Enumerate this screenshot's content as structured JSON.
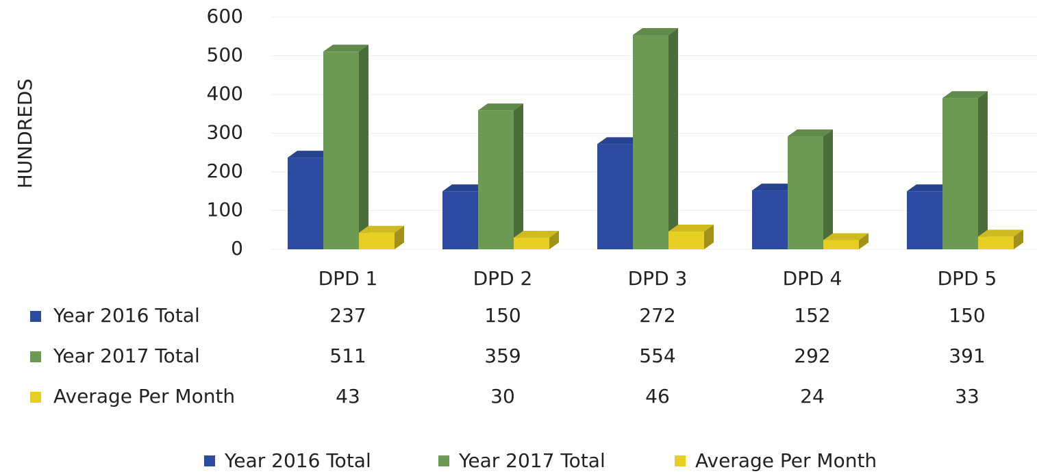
{
  "chart_data": {
    "type": "bar3d",
    "y_label": "HUNDREDS",
    "categories": [
      "DPD 1",
      "DPD 2",
      "DPD 3",
      "DPD 4",
      "DPD 5"
    ],
    "series": [
      {
        "name": "Year 2016 Total",
        "color": "#2b4aa0",
        "values": [
          237,
          150,
          272,
          152,
          150
        ]
      },
      {
        "name": "Year 2017 Total",
        "color": "#6c9a52",
        "values": [
          511,
          359,
          554,
          292,
          391
        ]
      },
      {
        "name": "Average Per Month",
        "color": "#e6cf22",
        "values": [
          43,
          30,
          46,
          24,
          33
        ]
      }
    ],
    "ylim": [
      0,
      600
    ],
    "yticks": [
      0,
      100,
      200,
      300,
      400,
      500,
      600
    ],
    "data_table": true,
    "legend": "bottom"
  }
}
